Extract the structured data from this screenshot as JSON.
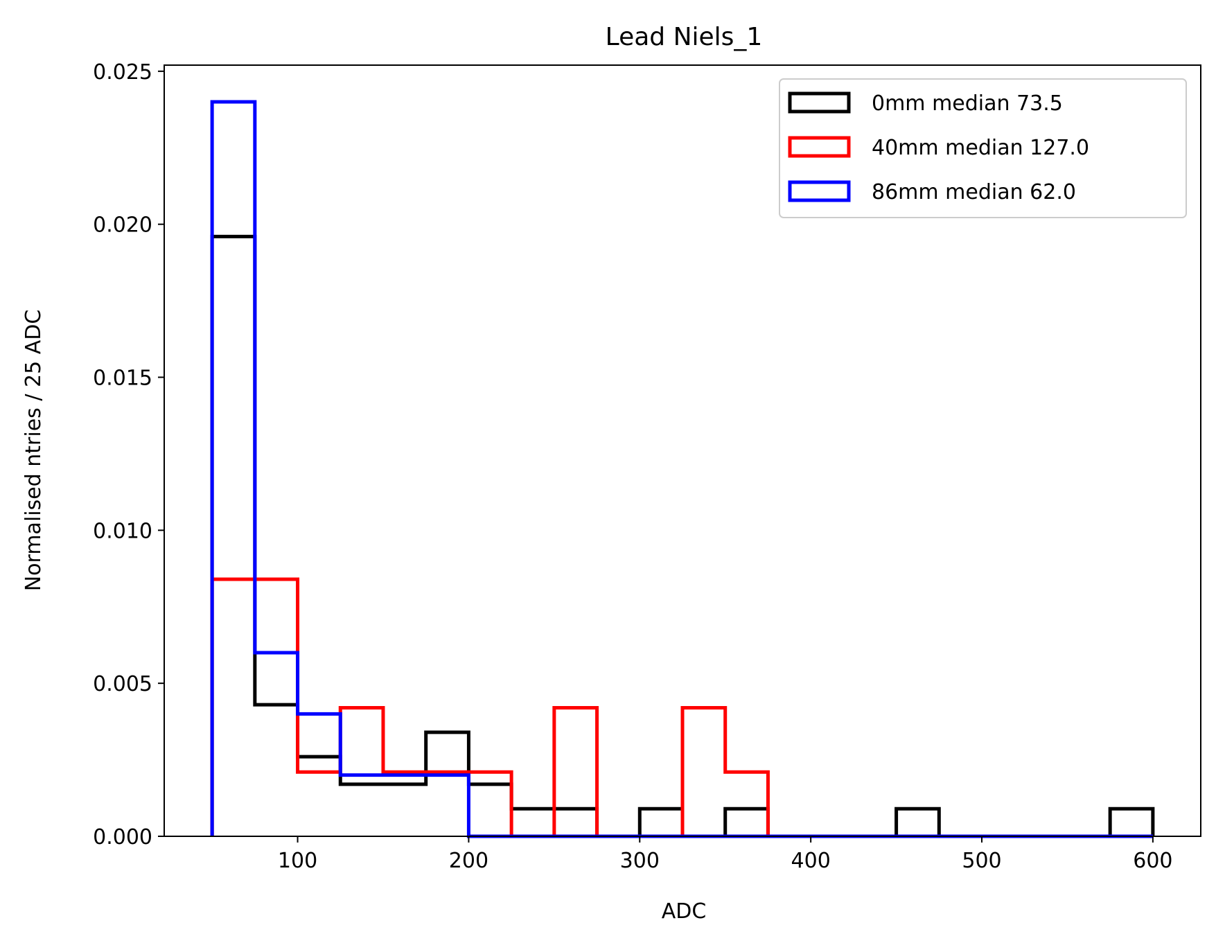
{
  "chart_data": {
    "type": "histogram",
    "title": "Lead Niels_1",
    "xlabel": "ADC",
    "ylabel": "Normalised ntries / 25 ADC",
    "xlim": [
      22,
      628
    ],
    "ylim": [
      0,
      0.0252
    ],
    "xticks": [
      100,
      200,
      300,
      400,
      500,
      600
    ],
    "xtick_labels": [
      "100",
      "200",
      "300",
      "400",
      "500",
      "600"
    ],
    "yticks": [
      0,
      0.005,
      0.01,
      0.015,
      0.02,
      0.025
    ],
    "ytick_labels": [
      "0.000",
      "0.005",
      "0.010",
      "0.015",
      "0.020",
      "0.025"
    ],
    "grid": false,
    "legend_position": "top-right",
    "bin_edges": [
      50,
      75,
      100,
      125,
      150,
      175,
      200,
      225,
      250,
      275,
      300,
      325,
      350,
      375,
      400,
      425,
      450,
      475,
      500,
      525,
      550,
      575,
      600
    ],
    "series": [
      {
        "name": "0mm median 73.5",
        "color": "#000000",
        "values": [
          0.0196,
          0.0043,
          0.0026,
          0.0017,
          0.0017,
          0.0034,
          0.0017,
          0.0009,
          0.0009,
          0,
          0.0009,
          0,
          0.0009,
          0,
          0,
          0,
          0.0009,
          0,
          0,
          0,
          0,
          0.0009
        ]
      },
      {
        "name": "40mm median 127.0",
        "color": "#ff0000",
        "values": [
          0.0084,
          0.0084,
          0.0021,
          0.0042,
          0.0021,
          0.0021,
          0.0021,
          0,
          0.0042,
          0,
          0,
          0.0042,
          0.0021,
          0,
          0,
          0,
          0,
          0,
          0,
          0,
          0,
          0
        ]
      },
      {
        "name": "86mm median 62.0",
        "color": "#0000ff",
        "values": [
          0.024,
          0.006,
          0.004,
          0.002,
          0.002,
          0.002,
          0,
          0,
          0,
          0,
          0,
          0,
          0,
          0,
          0,
          0,
          0,
          0,
          0,
          0,
          0,
          0
        ]
      }
    ]
  }
}
